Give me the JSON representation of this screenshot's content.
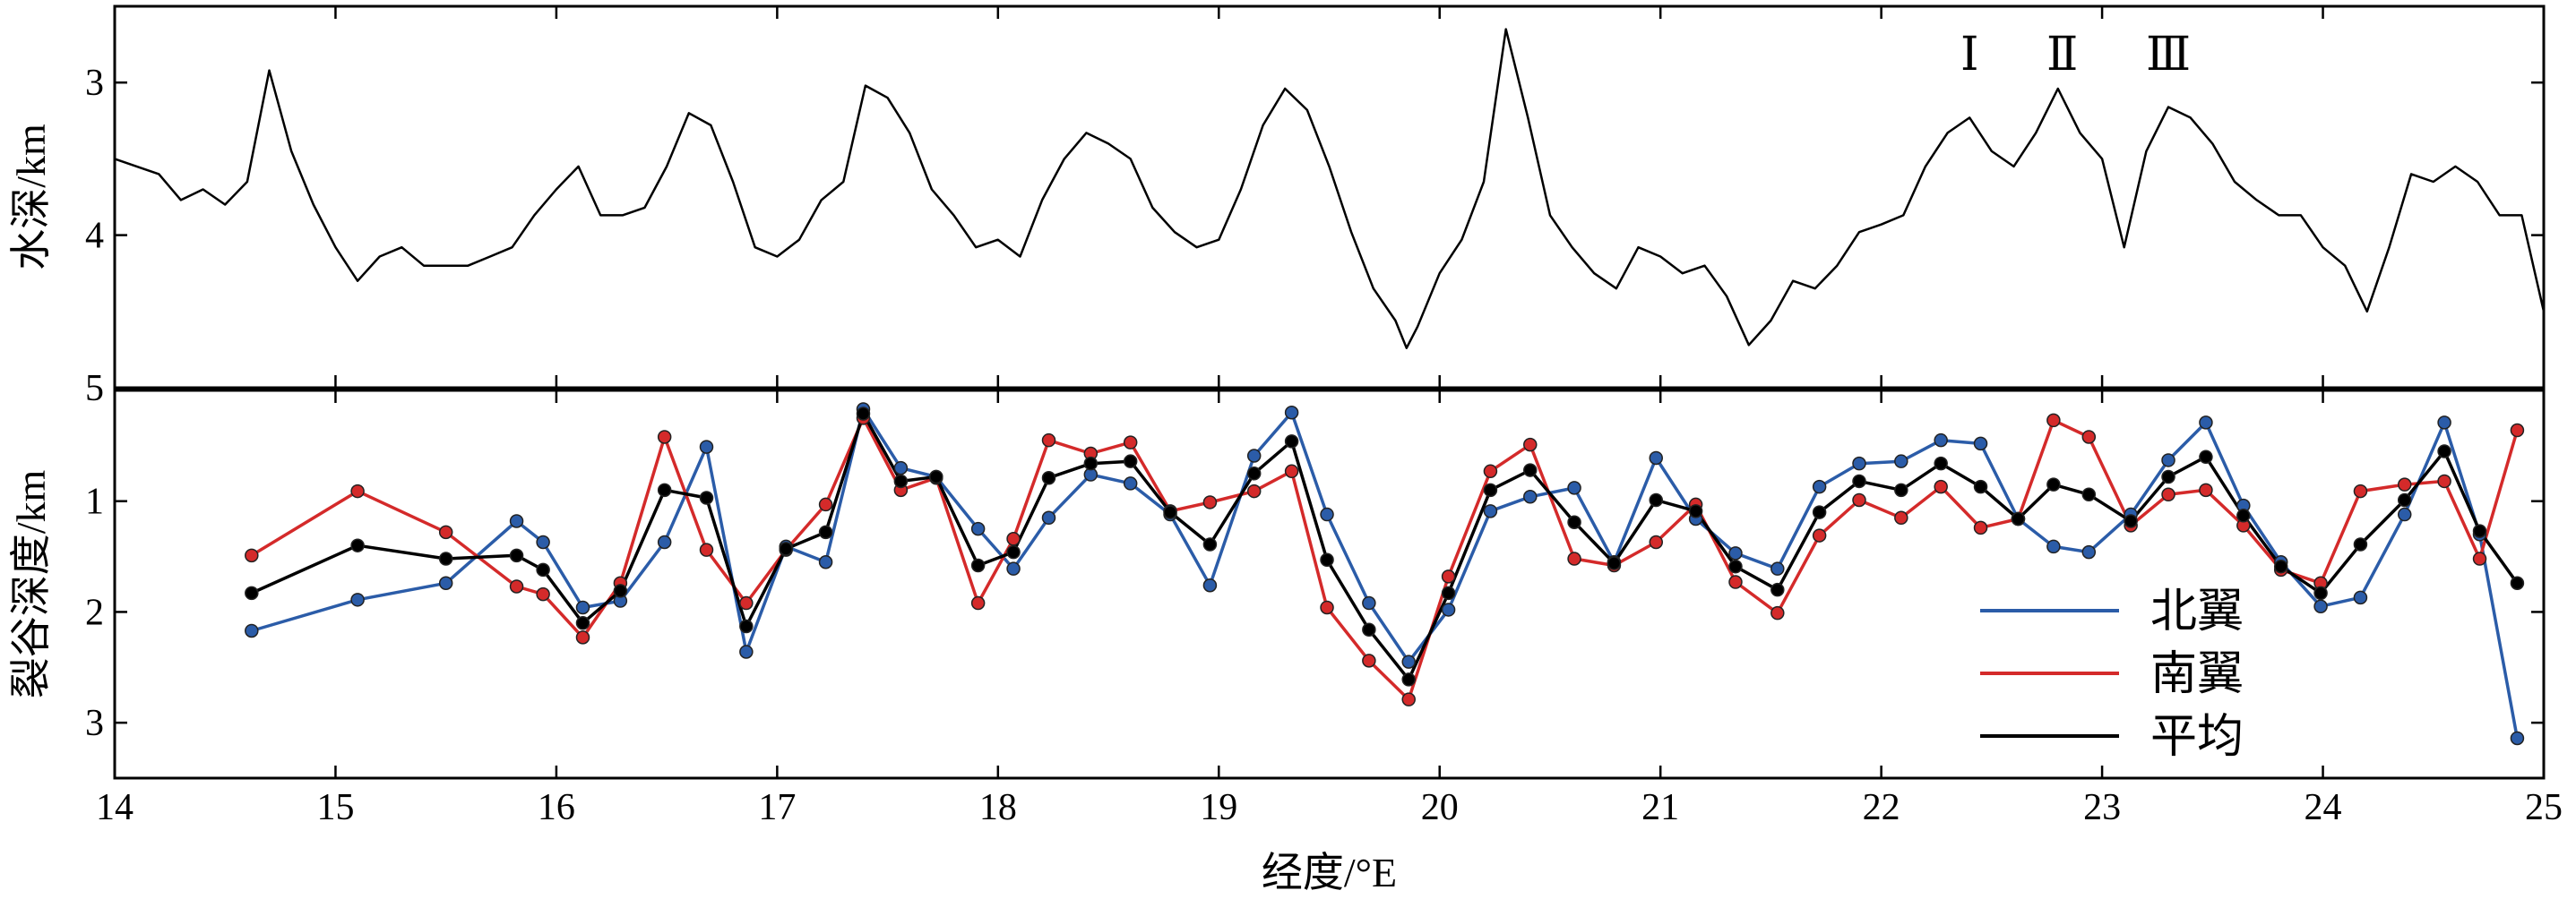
{
  "chart_data": [
    {
      "type": "line",
      "ylabel": "水深/km",
      "color": "#000000",
      "x": [
        14.0,
        14.1,
        14.2,
        14.3,
        14.4,
        14.5,
        14.6,
        14.7,
        14.8,
        14.9,
        15.0,
        15.1,
        15.2,
        15.3,
        15.4,
        15.5,
        15.6,
        15.7,
        15.8,
        15.9,
        16.0,
        16.1,
        16.2,
        16.3,
        16.4,
        16.5,
        16.6,
        16.7,
        16.8,
        16.9,
        17.0,
        17.1,
        17.2,
        17.3,
        17.4,
        17.5,
        17.6,
        17.7,
        17.8,
        17.9,
        18.0,
        18.1,
        18.2,
        18.3,
        18.4,
        18.5,
        18.6,
        18.7,
        18.8,
        18.9,
        19.0,
        19.1,
        19.2,
        19.3,
        19.4,
        19.5,
        19.6,
        19.7,
        19.8,
        19.85,
        19.9,
        20.0,
        20.1,
        20.2,
        20.3,
        20.4,
        20.5,
        20.6,
        20.7,
        20.8,
        20.9,
        21.0,
        21.1,
        21.2,
        21.3,
        21.4,
        21.5,
        21.6,
        21.7,
        21.8,
        21.9,
        22.0,
        22.1,
        22.2,
        22.3,
        22.4,
        22.5,
        22.6,
        22.7,
        22.8,
        22.9,
        23.0,
        23.1,
        23.2,
        23.3,
        23.4,
        23.5,
        23.6,
        23.7,
        23.8,
        23.9,
        24.0,
        24.1,
        24.2,
        24.3,
        24.4,
        24.5,
        24.6,
        24.7,
        24.8,
        24.9,
        25.0
      ],
      "values": [
        3.5,
        3.55,
        3.6,
        3.77,
        3.7,
        3.8,
        3.65,
        2.92,
        3.45,
        3.8,
        4.08,
        4.3,
        4.14,
        4.08,
        4.2,
        4.2,
        4.2,
        4.14,
        4.08,
        3.87,
        3.7,
        3.55,
        3.87,
        3.87,
        3.82,
        3.55,
        3.2,
        3.28,
        3.65,
        4.08,
        4.14,
        4.03,
        3.77,
        3.65,
        3.02,
        3.1,
        3.33,
        3.7,
        3.87,
        4.08,
        4.03,
        4.14,
        3.77,
        3.5,
        3.33,
        3.4,
        3.5,
        3.82,
        3.98,
        4.08,
        4.03,
        3.7,
        3.28,
        3.04,
        3.18,
        3.55,
        3.98,
        4.35,
        4.56,
        4.74,
        4.6,
        4.25,
        4.03,
        3.65,
        2.65,
        3.23,
        3.87,
        4.08,
        4.25,
        4.35,
        4.08,
        4.14,
        4.25,
        4.2,
        4.4,
        4.72,
        4.56,
        4.3,
        4.35,
        4.2,
        3.98,
        3.93,
        3.87,
        3.55,
        3.33,
        3.23,
        3.45,
        3.55,
        3.33,
        3.04,
        3.33,
        3.5,
        4.08,
        3.45,
        3.16,
        3.23,
        3.4,
        3.65,
        3.77,
        3.87,
        3.87,
        4.08,
        4.2,
        4.5,
        4.08,
        3.6,
        3.65,
        3.55,
        3.65,
        3.87,
        3.87,
        4.5
      ],
      "xlim": [
        14,
        25
      ],
      "xticks": [
        14,
        15,
        16,
        17,
        18,
        19,
        20,
        21,
        22,
        23,
        24,
        25
      ],
      "show_xtick_labels": false,
      "ylim": [
        5,
        2.5
      ],
      "yticks": [
        3,
        4,
        5
      ],
      "annotations": [
        {
          "text": "Ⅰ",
          "x": 22.4
        },
        {
          "text": "Ⅱ",
          "x": 22.82
        },
        {
          "text": "Ⅲ",
          "x": 23.3
        }
      ]
    },
    {
      "type": "line",
      "ylabel": "裂谷深度/km",
      "xlabel": "经度/°E",
      "markers": true,
      "legend": "lower right",
      "x": [
        14.62,
        15.1,
        15.5,
        15.82,
        15.94,
        16.12,
        16.29,
        16.49,
        16.68,
        16.86,
        17.04,
        17.22,
        17.39,
        17.56,
        17.72,
        17.91,
        18.07,
        18.23,
        18.42,
        18.6,
        18.78,
        18.96,
        19.16,
        19.33,
        19.49,
        19.68,
        19.86,
        20.04,
        20.23,
        20.41,
        20.61,
        20.79,
        20.98,
        21.16,
        21.34,
        21.53,
        21.72,
        21.9,
        22.09,
        22.27,
        22.45,
        22.62,
        22.78,
        22.94,
        23.13,
        23.3,
        23.47,
        23.64,
        23.81,
        23.99,
        24.17,
        24.37,
        24.55,
        24.71,
        24.88
      ],
      "series": [
        {
          "name": "北翼",
          "color": "#2b5ca8",
          "values": [
            2.17,
            1.89,
            1.74,
            1.18,
            1.37,
            1.96,
            1.9,
            1.37,
            0.51,
            2.36,
            1.41,
            1.55,
            0.17,
            0.7,
            0.78,
            1.25,
            1.61,
            1.15,
            0.76,
            0.84,
            1.12,
            1.76,
            0.59,
            0.2,
            1.12,
            1.92,
            2.45,
            1.98,
            1.09,
            0.96,
            0.88,
            1.55,
            0.61,
            1.16,
            1.47,
            1.61,
            0.87,
            0.66,
            0.64,
            0.45,
            0.48,
            1.16,
            1.41,
            1.46,
            1.12,
            0.63,
            0.29,
            1.04,
            1.55,
            1.95,
            1.87,
            1.12,
            0.29,
            1.3,
            3.14
          ]
        },
        {
          "name": "南翼",
          "color": "#d42a2a",
          "values": [
            1.49,
            0.91,
            1.28,
            1.77,
            1.84,
            2.23,
            1.74,
            0.42,
            1.44,
            1.92,
            1.44,
            1.03,
            0.25,
            0.9,
            0.79,
            1.92,
            1.34,
            0.45,
            0.57,
            0.47,
            1.09,
            1.01,
            0.91,
            0.73,
            1.96,
            2.44,
            2.79,
            1.68,
            0.73,
            0.49,
            1.52,
            1.58,
            1.37,
            1.03,
            1.73,
            2.01,
            1.31,
            0.99,
            1.15,
            0.87,
            1.24,
            1.16,
            0.27,
            0.42,
            1.22,
            0.94,
            0.9,
            1.22,
            1.62,
            1.74,
            0.91,
            0.85,
            0.82,
            1.52,
            0.36
          ]
        },
        {
          "name": "平均",
          "color": "#000000",
          "values": [
            1.83,
            1.4,
            1.52,
            1.49,
            1.62,
            2.1,
            1.81,
            0.9,
            0.97,
            2.13,
            1.43,
            1.28,
            0.21,
            0.82,
            0.78,
            1.58,
            1.46,
            0.79,
            0.66,
            0.64,
            1.1,
            1.39,
            0.75,
            0.46,
            1.53,
            2.16,
            2.61,
            1.83,
            0.9,
            0.72,
            1.19,
            1.56,
            0.99,
            1.09,
            1.59,
            1.8,
            1.1,
            0.82,
            0.9,
            0.66,
            0.87,
            1.16,
            0.85,
            0.94,
            1.18,
            0.78,
            0.6,
            1.13,
            1.59,
            1.83,
            1.39,
            0.99,
            0.55,
            1.27,
            1.74
          ]
        }
      ],
      "xlim": [
        14,
        25
      ],
      "xticks": [
        14,
        15,
        16,
        17,
        18,
        19,
        20,
        21,
        22,
        23,
        24,
        25
      ],
      "show_xtick_labels": true,
      "ylim": [
        3.5,
        0
      ],
      "yticks": [
        1,
        2,
        3
      ]
    }
  ]
}
